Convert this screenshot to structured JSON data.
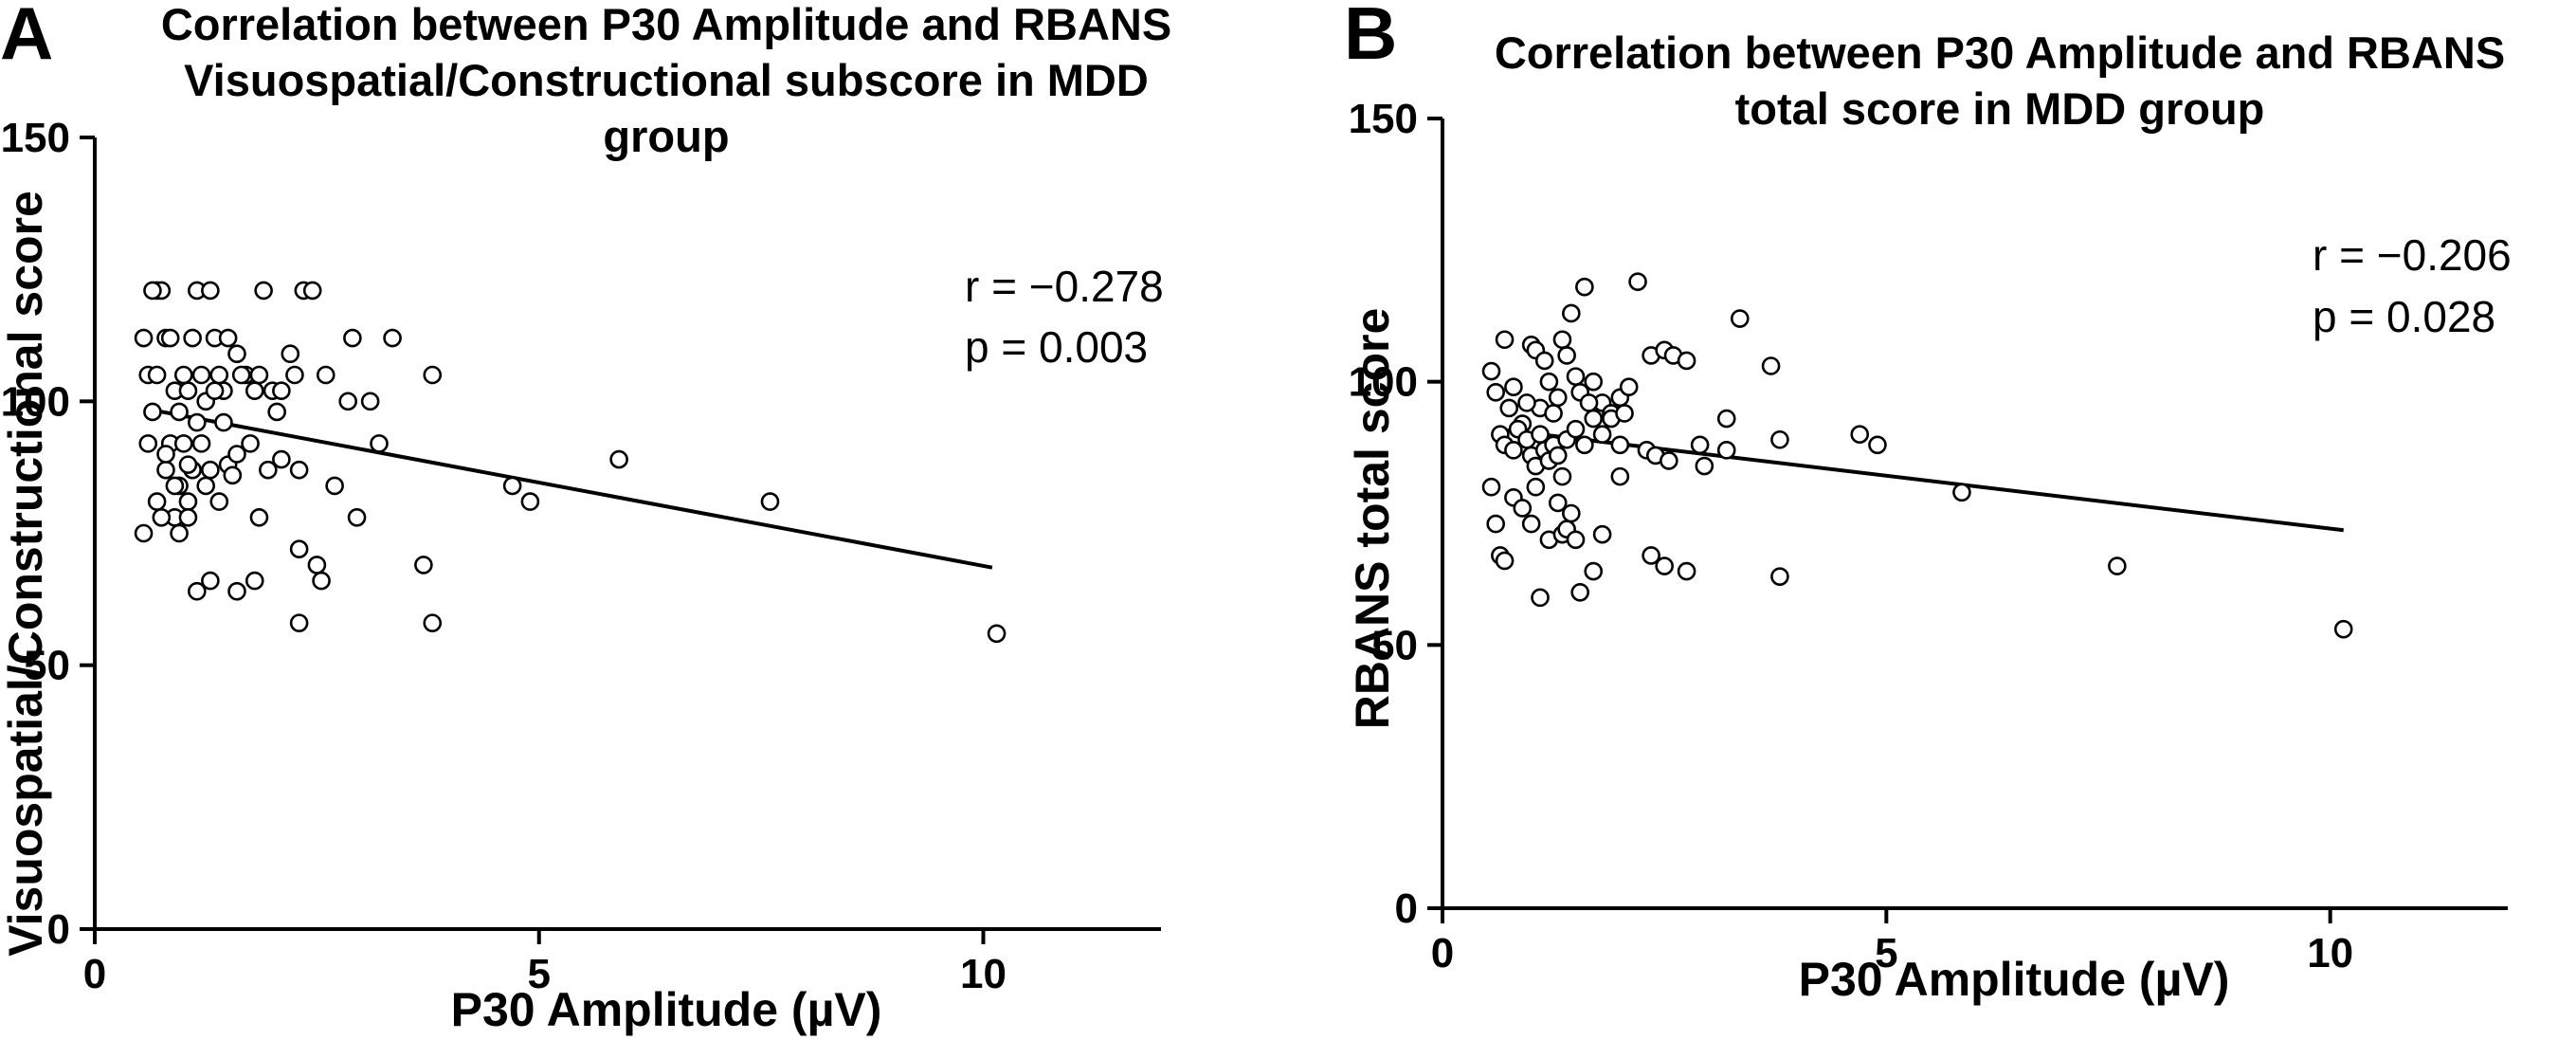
{
  "chart_data": [
    {
      "type": "scatter",
      "panel": "A",
      "title": "Correlation between P30 Amplitude and RBANS Visuospatial/Constructional subscore in MDD group",
      "title_lines": [
        "Correlation between P30 Amplitude and RBANS",
        "Visuospatial/Constructional subscore in MDD",
        "group"
      ],
      "xlabel": "P30 Amplitude (µV)",
      "ylabel": "Visuospatial/Constructional score",
      "xlim": [
        0,
        12
      ],
      "ylim": [
        0,
        150
      ],
      "xticks": [
        0,
        5,
        10
      ],
      "yticks": [
        0,
        50,
        100,
        150
      ],
      "stats": {
        "r": "r = −0.278",
        "p": "p = 0.003"
      },
      "regression": {
        "x": [
          0.6,
          10.1
        ],
        "y": [
          98.5,
          68.5
        ]
      },
      "points": [
        [
          0.55,
          112
        ],
        [
          0.6,
          105
        ],
        [
          0.7,
          121
        ],
        [
          0.75,
          121
        ],
        [
          0.8,
          112
        ],
        [
          0.65,
          121
        ],
        [
          0.7,
          105
        ],
        [
          0.85,
          112
        ],
        [
          0.9,
          102
        ],
        [
          1.0,
          105
        ],
        [
          1.1,
          112
        ],
        [
          1.15,
          121
        ],
        [
          1.2,
          105
        ],
        [
          1.3,
          121
        ],
        [
          1.35,
          112
        ],
        [
          1.4,
          105
        ],
        [
          1.5,
          112
        ],
        [
          1.6,
          109
        ],
        [
          1.7,
          105
        ],
        [
          1.8,
          102
        ],
        [
          1.9,
          121
        ],
        [
          2.0,
          102
        ],
        [
          2.1,
          102
        ],
        [
          2.2,
          109
        ],
        [
          2.25,
          105
        ],
        [
          2.35,
          121
        ],
        [
          2.45,
          121
        ],
        [
          2.6,
          105
        ],
        [
          2.9,
          112
        ],
        [
          3.1,
          100
        ],
        [
          3.35,
          112
        ],
        [
          3.8,
          105
        ],
        [
          2.85,
          100
        ],
        [
          1.05,
          102
        ],
        [
          1.25,
          100
        ],
        [
          1.45,
          102
        ],
        [
          1.65,
          105
        ],
        [
          1.85,
          105
        ],
        [
          0.95,
          98
        ],
        [
          1.15,
          96
        ],
        [
          0.6,
          92
        ],
        [
          0.7,
          81
        ],
        [
          0.8,
          87
        ],
        [
          0.85,
          92
        ],
        [
          0.9,
          78
        ],
        [
          0.95,
          84
        ],
        [
          1.0,
          92
        ],
        [
          1.05,
          81
        ],
        [
          1.1,
          87
        ],
        [
          1.2,
          92
        ],
        [
          1.25,
          84
        ],
        [
          1.3,
          87
        ],
        [
          1.4,
          81
        ],
        [
          1.5,
          88
        ],
        [
          1.6,
          90
        ],
        [
          1.75,
          92
        ],
        [
          1.85,
          78
        ],
        [
          1.95,
          87
        ],
        [
          2.1,
          89
        ],
        [
          2.3,
          87
        ],
        [
          2.7,
          84
        ],
        [
          2.95,
          78
        ],
        [
          3.2,
          92
        ],
        [
          0.55,
          75
        ],
        [
          0.75,
          78
        ],
        [
          0.95,
          75
        ],
        [
          1.05,
          78
        ],
        [
          1.15,
          64
        ],
        [
          1.3,
          66
        ],
        [
          1.6,
          64
        ],
        [
          1.8,
          66
        ],
        [
          2.3,
          72
        ],
        [
          2.5,
          69
        ],
        [
          2.55,
          66
        ],
        [
          2.3,
          58
        ],
        [
          3.7,
          69
        ],
        [
          3.8,
          58
        ],
        [
          4.7,
          84
        ],
        [
          4.9,
          81
        ],
        [
          5.9,
          89
        ],
        [
          7.6,
          81
        ],
        [
          10.15,
          56
        ],
        [
          0.65,
          98
        ],
        [
          1.35,
          102
        ],
        [
          0.8,
          90
        ],
        [
          1.55,
          86
        ],
        [
          2.05,
          98
        ],
        [
          1.05,
          88
        ],
        [
          1.45,
          96
        ],
        [
          0.9,
          84
        ]
      ]
    },
    {
      "type": "scatter",
      "panel": "B",
      "title": "Correlation between P30 Amplitude and RBANS total score in MDD group",
      "title_lines": [
        "Correlation between P30 Amplitude and RBANS",
        "total score in MDD group"
      ],
      "xlabel": "P30 Amplitude (µV)",
      "ylabel": "RBANS total score",
      "xlim": [
        0,
        12
      ],
      "ylim": [
        0,
        150
      ],
      "xticks": [
        0,
        5,
        10
      ],
      "yticks": [
        0,
        50,
        100,
        150
      ],
      "stats": {
        "r": "r = −0.206",
        "p": "p = 0.028"
      },
      "regression": {
        "x": [
          0.6,
          10.15
        ],
        "y": [
          91.0,
          71.8
        ]
      },
      "points": [
        [
          0.55,
          102
        ],
        [
          0.6,
          98
        ],
        [
          0.7,
          108
        ],
        [
          0.75,
          95
        ],
        [
          0.8,
          99
        ],
        [
          0.9,
          92
        ],
        [
          1.0,
          107
        ],
        [
          1.05,
          106
        ],
        [
          1.1,
          95
        ],
        [
          1.15,
          104
        ],
        [
          1.2,
          100
        ],
        [
          1.3,
          97
        ],
        [
          1.35,
          108
        ],
        [
          1.4,
          105
        ],
        [
          1.45,
          113
        ],
        [
          1.5,
          101
        ],
        [
          1.55,
          98
        ],
        [
          1.6,
          118
        ],
        [
          1.7,
          100
        ],
        [
          1.8,
          96
        ],
        [
          1.9,
          94
        ],
        [
          2.0,
          97
        ],
        [
          2.1,
          99
        ],
        [
          2.2,
          119
        ],
        [
          2.35,
          105
        ],
        [
          2.5,
          106
        ],
        [
          2.6,
          105
        ],
        [
          2.75,
          104
        ],
        [
          3.35,
          112
        ],
        [
          3.7,
          103
        ],
        [
          0.65,
          90
        ],
        [
          0.7,
          88
        ],
        [
          0.8,
          87
        ],
        [
          0.85,
          91
        ],
        [
          0.95,
          89
        ],
        [
          1.0,
          86
        ],
        [
          1.05,
          84
        ],
        [
          1.1,
          90
        ],
        [
          1.15,
          87
        ],
        [
          1.2,
          85
        ],
        [
          1.25,
          88
        ],
        [
          1.3,
          86
        ],
        [
          1.35,
          82
        ],
        [
          1.4,
          89
        ],
        [
          1.5,
          91
        ],
        [
          1.6,
          88
        ],
        [
          1.7,
          93
        ],
        [
          1.8,
          90
        ],
        [
          1.9,
          93
        ],
        [
          2.0,
          88
        ],
        [
          2.3,
          87
        ],
        [
          2.4,
          86
        ],
        [
          2.55,
          85
        ],
        [
          2.9,
          88
        ],
        [
          2.95,
          84
        ],
        [
          3.2,
          87
        ],
        [
          3.2,
          93
        ],
        [
          3.8,
          89
        ],
        [
          4.7,
          90
        ],
        [
          4.9,
          88
        ],
        [
          0.55,
          80
        ],
        [
          0.6,
          73
        ],
        [
          0.65,
          67
        ],
        [
          0.7,
          66
        ],
        [
          0.8,
          78
        ],
        [
          0.9,
          76
        ],
        [
          1.0,
          73
        ],
        [
          1.05,
          80
        ],
        [
          1.1,
          59
        ],
        [
          1.2,
          70
        ],
        [
          1.3,
          77
        ],
        [
          1.35,
          71
        ],
        [
          1.4,
          72
        ],
        [
          1.5,
          70
        ],
        [
          1.55,
          60
        ],
        [
          1.7,
          64
        ],
        [
          1.8,
          71
        ],
        [
          2.0,
          82
        ],
        [
          2.35,
          67
        ],
        [
          2.5,
          65
        ],
        [
          2.75,
          64
        ],
        [
          3.8,
          63
        ],
        [
          5.85,
          79
        ],
        [
          7.6,
          65
        ],
        [
          10.15,
          53
        ],
        [
          0.95,
          96
        ],
        [
          1.25,
          94
        ],
        [
          1.45,
          75
        ],
        [
          1.65,
          96
        ],
        [
          2.05,
          94
        ]
      ]
    }
  ]
}
